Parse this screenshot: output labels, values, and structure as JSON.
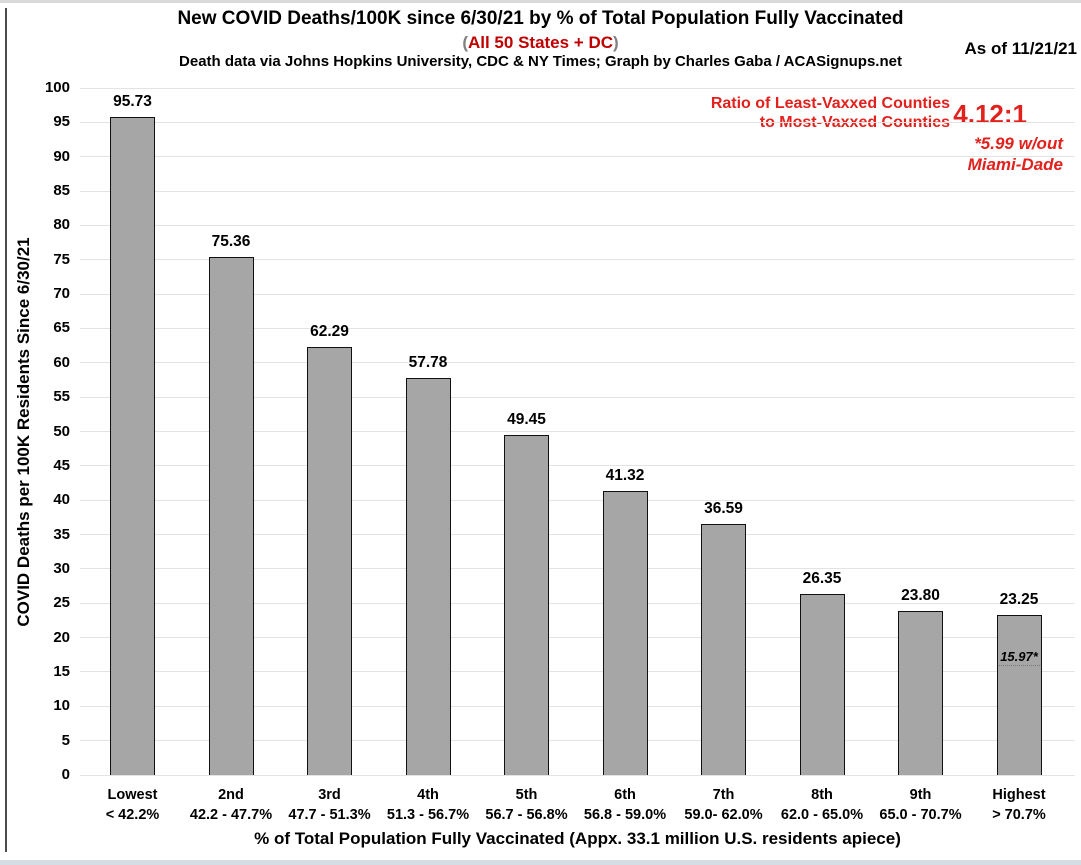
{
  "header": {
    "title": "New COVID Deaths/100K since 6/30/21 by % of Total Population Fully Vaccinated",
    "subtitle": {
      "open": "(",
      "text": "All 50 States + DC",
      "close": ")"
    },
    "source": "Death data via Johns Hopkins University, CDC & NY Times; Graph by Charles Gaba / ACASignups.net",
    "as_of": "As of 11/21/21"
  },
  "annotation": {
    "label_line1": "Ratio of Least-Vaxxed Counties",
    "label_line2": "to Most-Vaxxed Counties",
    "ratio_value": "4.12:1",
    "footnote_line1": "*5.99 w/out",
    "footnote_line2": "Miami-Dade"
  },
  "colors": {
    "annotation_red": "#e2201c",
    "subtitle_red": "#c00000",
    "paren_gray": "#808080",
    "bar_fill": "#a6a6a6",
    "bar_border": "#111111",
    "gridline": "#e3e3e3",
    "text_black": "#000000"
  },
  "chart_data": {
    "type": "bar",
    "title": "New COVID Deaths/100K since 6/30/21 by % of Total Population Fully Vaccinated",
    "xlabel": "% of Total Population Fully Vaccinated (Appx. 33.1 million U.S. residents apiece)",
    "ylabel": "COVID Deaths per 100K Residents Since 6/30/21",
    "ylim": [
      0,
      100
    ],
    "ytick_step": 5,
    "grid": true,
    "legend": false,
    "categories": [
      {
        "label": "Lowest",
        "range": "< 42.2%"
      },
      {
        "label": "2nd",
        "range": "42.2 - 47.7%"
      },
      {
        "label": "3rd",
        "range": "47.7 - 51.3%"
      },
      {
        "label": "4th",
        "range": "51.3 - 56.7%"
      },
      {
        "label": "5th",
        "range": "56.7 - 56.8%"
      },
      {
        "label": "6th",
        "range": "56.8 - 59.0%"
      },
      {
        "label": "7th",
        "range": "59.0- 62.0%"
      },
      {
        "label": "8th",
        "range": "62.0 - 65.0%"
      },
      {
        "label": "9th",
        "range": "65.0 - 70.7%"
      },
      {
        "label": "Highest",
        "range": "> 70.7%"
      }
    ],
    "values": [
      95.73,
      75.36,
      62.29,
      57.78,
      49.45,
      41.32,
      36.59,
      26.35,
      23.8,
      23.25
    ],
    "value_labels": [
      "95.73",
      "75.36",
      "62.29",
      "57.78",
      "49.45",
      "41.32",
      "36.59",
      "26.35",
      "23.80",
      "23.25"
    ],
    "inner_annotation": {
      "category_index": 9,
      "value": 15.97,
      "label": "15.97*"
    }
  }
}
